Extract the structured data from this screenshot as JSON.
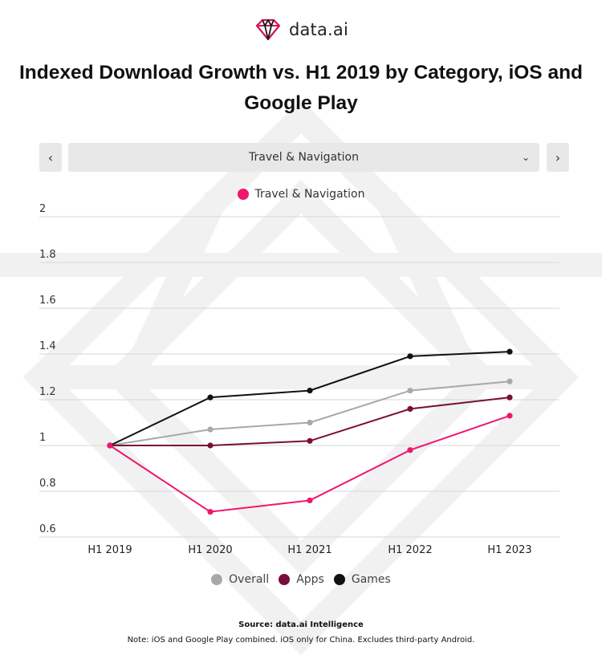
{
  "brand": {
    "name": "data.ai",
    "logo_icon": "diamond-logo-icon",
    "accent": "#d1155a"
  },
  "title": "Indexed Download Growth vs. H1 2019 by Category, iOS and Google Play",
  "selector": {
    "prev_icon": "chevron-left-icon",
    "next_icon": "chevron-right-icon",
    "prev_glyph": "‹",
    "next_glyph": "›",
    "selected": "Travel & Navigation",
    "dropdown_icon": "chevron-down-icon",
    "dropdown_glyph": "⌄"
  },
  "chart_data": {
    "type": "line",
    "categories": [
      "H1 2019",
      "H1 2020",
      "H1 2021",
      "H1 2022",
      "H1 2023"
    ],
    "ylim": [
      0.6,
      2
    ],
    "yticks": [
      0.6,
      0.8,
      1,
      1.2,
      1.4,
      1.6,
      1.8,
      2
    ],
    "ytick_labels": [
      "0.6",
      "0.8",
      "1",
      "1.2",
      "1.4",
      "1.6",
      "1.8",
      "2"
    ],
    "grid": true,
    "series": [
      {
        "name": "Travel & Navigation",
        "color": "#f0166e",
        "values": [
          1.0,
          0.71,
          0.76,
          0.98,
          1.13
        ]
      },
      {
        "name": "Overall",
        "color": "#a8a8a8",
        "values": [
          1.0,
          1.07,
          1.1,
          1.24,
          1.28
        ]
      },
      {
        "name": "Apps",
        "color": "#7a0e3a",
        "values": [
          1.0,
          1.0,
          1.02,
          1.16,
          1.21
        ]
      },
      {
        "name": "Games",
        "color": "#111111",
        "values": [
          1.0,
          1.21,
          1.24,
          1.39,
          1.41
        ]
      }
    ],
    "legend_top": [
      "Travel & Navigation"
    ],
    "legend_bottom": [
      "Overall",
      "Apps",
      "Games"
    ]
  },
  "footer": {
    "source": "Source: data.ai Intelligence",
    "note": "Note: iOS and Google Play combined. iOS only for China. Excludes third-party Android."
  }
}
